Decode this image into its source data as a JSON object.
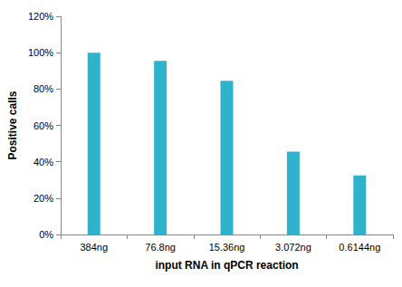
{
  "chart_data": {
    "type": "bar",
    "x_label": "input RNA in qPCR reaction",
    "y_label": "Positive calls",
    "categories": [
      "384ng",
      "76.8ng",
      "15.36ng",
      "3.072ng",
      "0.6144ng"
    ],
    "values": [
      100,
      95.5,
      84.5,
      45.5,
      32.5
    ],
    "color": "#2fb3cc",
    "ylim": [
      0,
      120
    ],
    "yticks": [
      {
        "value": 0,
        "label": "0%"
      },
      {
        "value": 20,
        "label": "20%"
      },
      {
        "value": 40,
        "label": "40%"
      },
      {
        "value": 60,
        "label": "60%"
      },
      {
        "value": 80,
        "label": "80%"
      },
      {
        "value": 100,
        "label": "100%"
      },
      {
        "value": 120,
        "label": "120%"
      }
    ],
    "grid": false
  }
}
